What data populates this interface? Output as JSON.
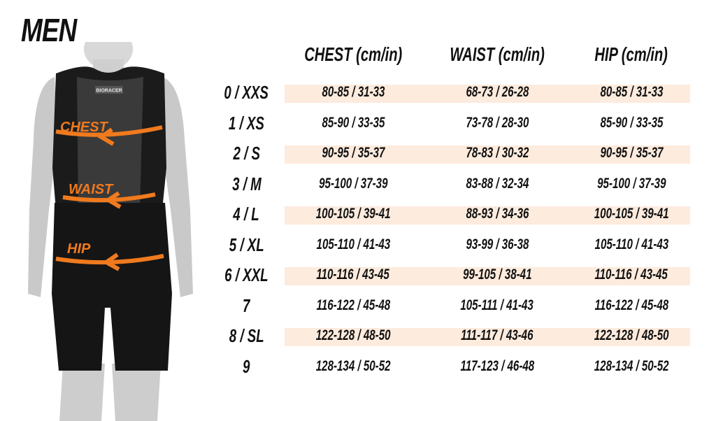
{
  "title": "MEN",
  "colors": {
    "band": "#fdebdd",
    "arrow": "#f07a1e",
    "text": "#111111"
  },
  "figure": {
    "labels": [
      "CHEST",
      "WAIST",
      "HIP"
    ],
    "garment_brand": "BIORACER"
  },
  "columns": [
    "CHEST (cm/in)",
    "WAIST (cm/in)",
    "HIP (cm/in)"
  ],
  "rows": [
    {
      "size": "0 / XXS",
      "values": [
        "80-85 / 31-33",
        "68-73 / 26-28",
        "80-85 / 31-33"
      ],
      "highlighted": true
    },
    {
      "size": "1 / XS",
      "values": [
        "85-90 / 33-35",
        "73-78 / 28-30",
        "85-90 / 33-35"
      ],
      "highlighted": false
    },
    {
      "size": "2 / S",
      "values": [
        "90-95 / 35-37",
        "78-83 / 30-32",
        "90-95 / 35-37"
      ],
      "highlighted": true
    },
    {
      "size": "3 / M",
      "values": [
        "95-100 / 37-39",
        "83-88 / 32-34",
        "95-100 / 37-39"
      ],
      "highlighted": false
    },
    {
      "size": "4 / L",
      "values": [
        "100-105 / 39-41",
        "88-93 / 34-36",
        "100-105 / 39-41"
      ],
      "highlighted": true
    },
    {
      "size": "5 / XL",
      "values": [
        "105-110 / 41-43",
        "93-99 / 36-38",
        "105-110 / 41-43"
      ],
      "highlighted": false
    },
    {
      "size": "6 / XXL",
      "values": [
        "110-116 / 43-45",
        "99-105 / 38-41",
        "110-116 / 43-45"
      ],
      "highlighted": true
    },
    {
      "size": "7",
      "values": [
        "116-122 / 45-48",
        "105-111 / 41-43",
        "116-122 / 45-48"
      ],
      "highlighted": false
    },
    {
      "size": "8 / SL",
      "values": [
        "122-128 / 48-50",
        "111-117 / 43-46",
        "122-128 / 48-50"
      ],
      "highlighted": true
    },
    {
      "size": "9",
      "values": [
        "128-134 / 50-52",
        "117-123 / 46-48",
        "128-134 / 50-52"
      ],
      "highlighted": false
    }
  ]
}
